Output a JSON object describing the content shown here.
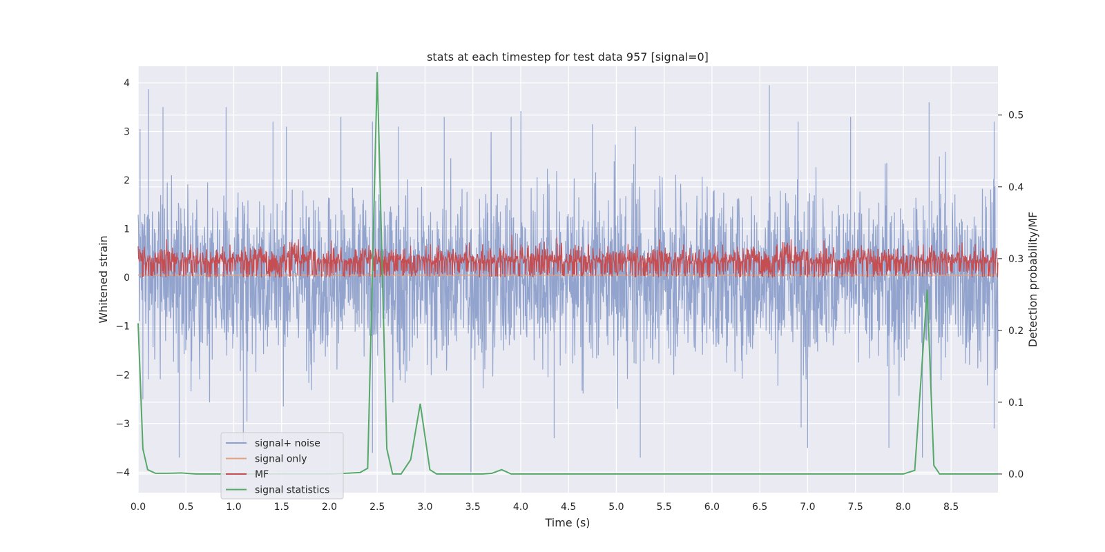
{
  "chart_data": {
    "type": "line",
    "title": "stats at each timestep for test data 957 [signal=0]",
    "xlabel": "Time (s)",
    "ylabel": "Whitened strain",
    "ylabel_right": "Detection probability/MF",
    "xlim": [
      0,
      8.99
    ],
    "ylim": [
      -4.42,
      4.34
    ],
    "ylim_right": [
      -0.026,
      0.568
    ],
    "xticks": [
      0.0,
      0.5,
      1.0,
      1.5,
      2.0,
      2.5,
      3.0,
      3.5,
      4.0,
      4.5,
      5.0,
      5.5,
      6.0,
      6.5,
      7.0,
      7.5,
      8.0,
      8.5
    ],
    "xtick_labels": [
      "0.0",
      "0.5",
      "1.0",
      "1.5",
      "2.0",
      "2.5",
      "3.0",
      "3.5",
      "4.0",
      "4.5",
      "5.0",
      "5.5",
      "6.0",
      "6.5",
      "7.0",
      "7.5",
      "8.0",
      "8.5"
    ],
    "yticks": [
      4,
      3,
      2,
      1,
      0,
      -1,
      -2,
      -3,
      -4
    ],
    "ytick_labels": [
      "4",
      "3",
      "2",
      "1",
      "0",
      "−1",
      "−2",
      "−3",
      "−4"
    ],
    "yticks_right": [
      0.5,
      0.4,
      0.3,
      0.2,
      0.1,
      0.0
    ],
    "ytick_labels_right": [
      "0.5",
      "0.4",
      "0.3",
      "0.2",
      "0.1",
      "0.0"
    ],
    "grid": true,
    "legend_position": "lower-left",
    "series": [
      {
        "name": "signal+ noise",
        "color": "#8da0cb",
        "axis": "left",
        "description_values": {
          "approx_range": [
            -4.0,
            3.95
          ]
        },
        "peaks": [
          [
            0.02,
            3.05
          ],
          [
            0.11,
            3.87
          ],
          [
            0.26,
            3.5
          ],
          [
            0.92,
            3.5
          ],
          [
            1.41,
            3.2
          ],
          [
            1.55,
            3.1
          ],
          [
            2.12,
            3.3
          ],
          [
            2.45,
            3.2
          ],
          [
            2.72,
            3.1
          ],
          [
            3.2,
            3.3
          ],
          [
            3.9,
            3.3
          ],
          [
            4.75,
            3.15
          ],
          [
            5.2,
            3.1
          ],
          [
            6.6,
            3.95
          ],
          [
            6.9,
            3.2
          ],
          [
            7.45,
            3.3
          ],
          [
            8.27,
            3.6
          ],
          [
            8.95,
            3.2
          ]
        ],
        "troughs": [
          [
            0.05,
            -2.5
          ],
          [
            0.43,
            -3.7
          ],
          [
            1.1,
            -3.4
          ],
          [
            2.45,
            -3.6
          ],
          [
            3.48,
            -4.0
          ],
          [
            4.35,
            -3.3
          ],
          [
            5.25,
            -3.7
          ],
          [
            7.0,
            -3.5
          ],
          [
            7.85,
            -3.5
          ],
          [
            8.2,
            -3.7
          ],
          [
            8.95,
            -3.1
          ]
        ]
      },
      {
        "name": "signal only",
        "color": "#e5a27f",
        "axis": "left",
        "constant": 0.05
      },
      {
        "name": "MF",
        "color": "#c44e52",
        "axis": "left",
        "description_values": {
          "approx_range": [
            0.0,
            0.98
          ]
        }
      },
      {
        "name": "signal statistics",
        "color": "#55a868",
        "axis": "right",
        "x": [
          0.0,
          0.05,
          0.1,
          0.18,
          0.3,
          0.45,
          0.6,
          1.0,
          1.5,
          2.0,
          2.32,
          2.4,
          2.5,
          2.6,
          2.66,
          2.75,
          2.85,
          2.95,
          3.05,
          3.12,
          3.2,
          3.6,
          3.7,
          3.8,
          3.9,
          4.0,
          5.0,
          6.0,
          7.0,
          8.0,
          8.12,
          8.25,
          8.32,
          8.38,
          8.5,
          8.99
        ],
        "y": [
          0.21,
          0.035,
          0.006,
          0.001,
          0.001,
          0.0015,
          0.0,
          0.0,
          0.0,
          0.0,
          0.002,
          0.008,
          0.56,
          0.035,
          0.0,
          0.0,
          0.02,
          0.098,
          0.006,
          0.0,
          0.0,
          0.0,
          0.001,
          0.006,
          0.0,
          0.0,
          0.0,
          0.0,
          0.0,
          0.0,
          0.005,
          0.257,
          0.012,
          0.0,
          0.0,
          0.0
        ]
      }
    ]
  }
}
